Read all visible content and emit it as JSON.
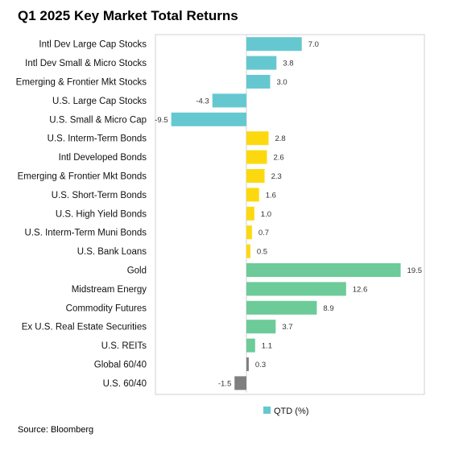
{
  "title": "Q1 2025 Key Market Total Returns",
  "source": "Source: Bloomberg",
  "chart_data": {
    "type": "bar",
    "orientation": "horizontal",
    "categories": [
      "Intl Dev Large Cap Stocks",
      "Intl Dev Small & Micro Stocks",
      "Emerging & Frontier Mkt Stocks",
      "U.S. Large Cap Stocks",
      "U.S. Small & Micro Cap",
      "U.S. Interm-Term Bonds",
      "Intl Developed Bonds",
      "Emerging & Frontier Mkt Bonds",
      "U.S. Short-Term Bonds",
      "U.S. High Yield Bonds",
      "U.S. Interm-Term Muni Bonds",
      "U.S. Bank Loans",
      "Gold",
      "Midstream Energy",
      "Commodity Futures",
      "Ex U.S. Real Estate Securities",
      "U.S. REITs",
      "Global 60/40",
      "U.S. 60/40"
    ],
    "series": [
      {
        "name": "QTD (%)",
        "values": [
          7.0,
          3.8,
          3.0,
          -4.3,
          -9.5,
          2.8,
          2.6,
          2.3,
          1.6,
          1.0,
          0.7,
          0.5,
          19.5,
          12.6,
          8.9,
          3.7,
          1.1,
          0.3,
          -1.5
        ],
        "labels": [
          "7.0",
          "3.8",
          "3.0",
          "-4.3",
          "-9.5",
          "2.8",
          "2.6",
          "2.3",
          "1.6",
          "1.0",
          "0.7",
          "0.5",
          "19.5",
          "12.6",
          "8.9",
          "3.7",
          "1.1",
          "0.3",
          "-1.5"
        ]
      }
    ],
    "bar_colors": [
      "#65c8d0",
      "#65c8d0",
      "#65c8d0",
      "#65c8d0",
      "#65c8d0",
      "#fcd90f",
      "#fcd90f",
      "#fcd90f",
      "#fcd90f",
      "#fcd90f",
      "#fcd90f",
      "#fcd90f",
      "#6ccb98",
      "#6ccb98",
      "#6ccb98",
      "#6ccb98",
      "#6ccb98",
      "#7f7f7f",
      "#7f7f7f"
    ],
    "xlim": [
      -11.5,
      22.5
    ],
    "grid": false,
    "legend": {
      "position": "bottom",
      "label": "QTD (%)",
      "color": "#65c8d0"
    }
  }
}
